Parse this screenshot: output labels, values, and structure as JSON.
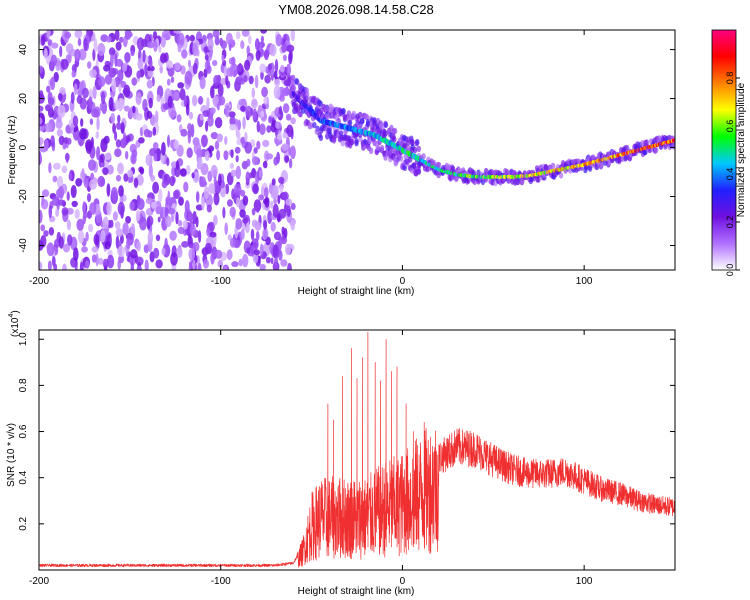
{
  "colors": {
    "snr_line": "#f03030",
    "axis": "#000000",
    "background": "#ffffff"
  },
  "chart_data": [
    {
      "type": "heatmap",
      "title": "YM08.2026.098.14.58.C28",
      "xlabel": "Height of straight line (km)",
      "ylabel": "Frequency (Hz)",
      "xlim": [
        -200,
        150
      ],
      "ylim": [
        -50,
        48
      ],
      "x_ticks": [
        -200,
        -100,
        0,
        100
      ],
      "x_tick_labels": [
        "-200",
        "-100",
        "0",
        "100"
      ],
      "y_ticks": [
        -40,
        -20,
        0,
        20,
        40
      ],
      "y_tick_labels": [
        "-40",
        "-20",
        "0",
        "20",
        "40"
      ],
      "ridge": {
        "x": [
          -60,
          -55,
          -50,
          -45,
          -40,
          -35,
          -30,
          -25,
          -20,
          -15,
          -10,
          -5,
          0,
          5,
          10,
          15,
          20,
          25,
          30,
          40,
          50,
          60,
          70,
          80,
          90,
          100,
          110,
          120,
          130,
          140,
          150
        ],
        "y": [
          22,
          18,
          15,
          11,
          10,
          9,
          8,
          7,
          6,
          5,
          3,
          1,
          -1,
          -3,
          -5,
          -7,
          -9,
          -10,
          -11,
          -12,
          -12,
          -12,
          -11.5,
          -10,
          -8.5,
          -7,
          -5,
          -3,
          -1,
          1,
          3
        ]
      },
      "noise_region_x": [
        -200,
        -60
      ],
      "colorbar": {
        "label": "Normalized spectral amplitude",
        "range": [
          0,
          1
        ],
        "ticks": [
          0.0,
          0.2,
          0.4,
          0.6,
          0.8
        ],
        "tick_labels": [
          "0.0",
          "0.2",
          "0.4",
          "0.6",
          "0.8"
        ],
        "stops": [
          "#ffffff",
          "#b070ff",
          "#7010e0",
          "#2020ff",
          "#00c8ff",
          "#00ff00",
          "#ffff00",
          "#ff8000",
          "#ff0000",
          "#ff0080"
        ]
      }
    },
    {
      "type": "line",
      "series_name": "SNR",
      "xlabel": "Height of straight line (km)",
      "ylabel": "SNR (10 * v/v)",
      "y_multiplier": "(x10",
      "y_multiplier_exp": "4",
      "xlim": [
        -200,
        150
      ],
      "ylim": [
        0,
        1.04
      ],
      "x_ticks": [
        -200,
        -100,
        0,
        100
      ],
      "x_tick_labels": [
        "-200",
        "-100",
        "0",
        "100"
      ],
      "y_ticks": [
        0.2,
        0.4,
        0.6,
        0.8,
        1.0
      ],
      "y_tick_labels": [
        "0.2",
        "0.4",
        "0.6",
        "0.8",
        "1.0"
      ],
      "envelope": {
        "x": [
          -200,
          -70,
          -60,
          -55,
          -50,
          -45,
          -40,
          -30,
          -20,
          -10,
          0,
          10,
          20,
          30,
          40,
          50,
          60,
          70,
          80,
          90,
          100,
          110,
          120,
          130,
          140,
          150
        ],
        "y": [
          0.02,
          0.02,
          0.03,
          0.1,
          0.25,
          0.3,
          0.3,
          0.3,
          0.3,
          0.35,
          0.38,
          0.44,
          0.5,
          0.55,
          0.54,
          0.49,
          0.45,
          0.43,
          0.43,
          0.44,
          0.4,
          0.36,
          0.34,
          0.31,
          0.29,
          0.28
        ]
      },
      "spikes": {
        "x": [
          -41,
          -38,
          -33,
          -28,
          -25,
          -22,
          -19,
          -15,
          -12,
          -9,
          -6,
          -3,
          2,
          6,
          12
        ],
        "y": [
          0.72,
          0.65,
          0.84,
          0.96,
          0.83,
          0.92,
          1.03,
          0.9,
          0.82,
          1.0,
          0.86,
          0.88,
          0.72,
          0.6,
          0.64
        ]
      }
    }
  ]
}
